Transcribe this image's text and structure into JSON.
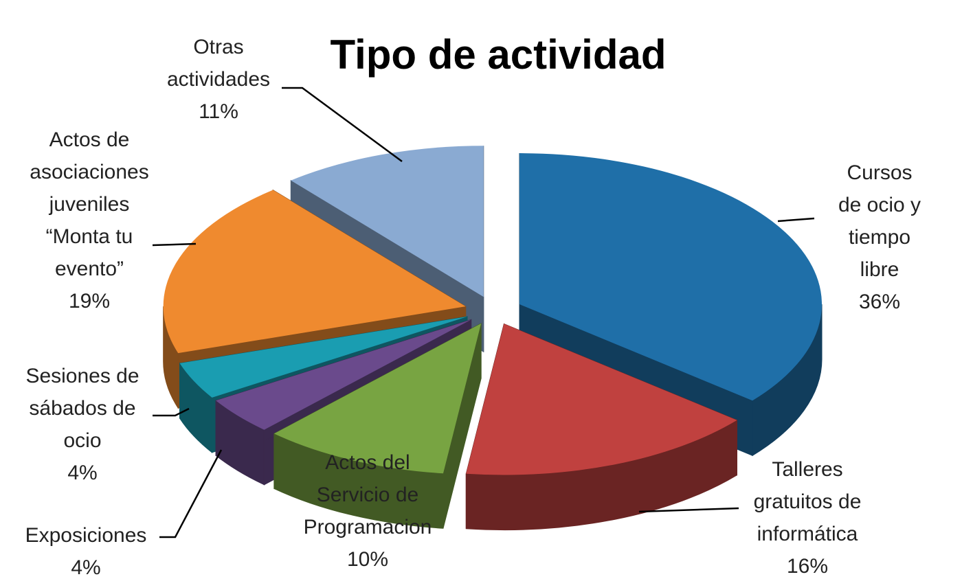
{
  "chart_data": {
    "type": "pie",
    "title": "Tipo de actividad",
    "categories": [
      "Cursos de ocio y\ntiempo libre",
      "Talleres\ngratuitos de\ninformática",
      "Actos del\nServicio de\nProgramacion",
      "Exposiciones",
      "Sesiones de\nsábados de\nocio",
      "Actos de\nasociaciones\njuveniles\n“Monta tu\nevento”",
      "Otras\nactividades"
    ],
    "values": [
      36,
      16,
      10,
      4,
      4,
      19,
      11
    ],
    "value_labels": [
      "36%",
      "16%",
      "10%",
      "4%",
      "4%",
      "19%",
      "11%"
    ],
    "colors": [
      "#1f6fa8",
      "#c0413f",
      "#78a442",
      "#6a4a8c",
      "#1a9db1",
      "#ef8a2f",
      "#8aaad2"
    ]
  }
}
